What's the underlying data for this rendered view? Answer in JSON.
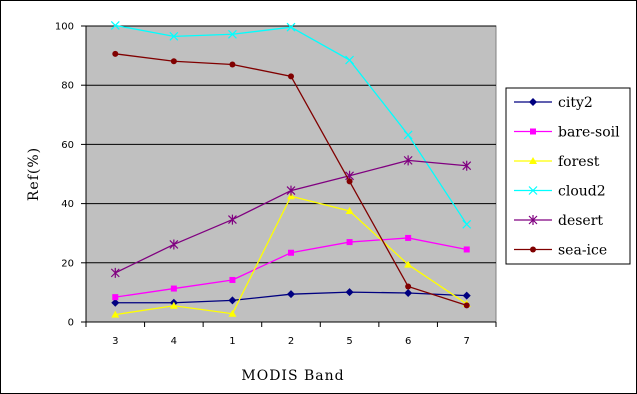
{
  "chart_data": {
    "type": "line",
    "categories": [
      "3",
      "4",
      "1",
      "2",
      "5",
      "6",
      "7"
    ],
    "xlabel": "MODIS Band",
    "ylabel": "Ref(%)",
    "ylim": [
      0,
      100
    ],
    "yticks": [
      0,
      20,
      40,
      60,
      80,
      100
    ],
    "grid": "horizontal",
    "legend_position": "right",
    "plot_background": "#c0c0c0",
    "series": [
      {
        "name": "city2",
        "color": "#000080",
        "marker": "diamond",
        "values": [
          6.5,
          6.5,
          7.3,
          9.4,
          10.1,
          9.8,
          8.9
        ]
      },
      {
        "name": "bare-soil",
        "color": "#ff00ff",
        "marker": "square",
        "values": [
          8.4,
          11.3,
          14.2,
          23.4,
          27.0,
          28.4,
          24.5
        ]
      },
      {
        "name": "forest",
        "color": "#ffff00",
        "marker": "triangle",
        "values": [
          2.5,
          5.5,
          2.8,
          42.5,
          37.5,
          19.4,
          6.1
        ]
      },
      {
        "name": "cloud2",
        "color": "#00ffff",
        "marker": "x",
        "values": [
          100.2,
          96.5,
          97.2,
          99.6,
          88.5,
          63.2,
          33.0
        ]
      },
      {
        "name": "desert",
        "color": "#800080",
        "marker": "star",
        "values": [
          16.6,
          26.2,
          34.6,
          44.4,
          49.4,
          54.6,
          52.8
        ]
      },
      {
        "name": "sea-ice",
        "color": "#800000",
        "marker": "circle",
        "values": [
          90.6,
          88.1,
          87.0,
          83.0,
          47.5,
          12.0,
          5.6
        ]
      }
    ]
  }
}
